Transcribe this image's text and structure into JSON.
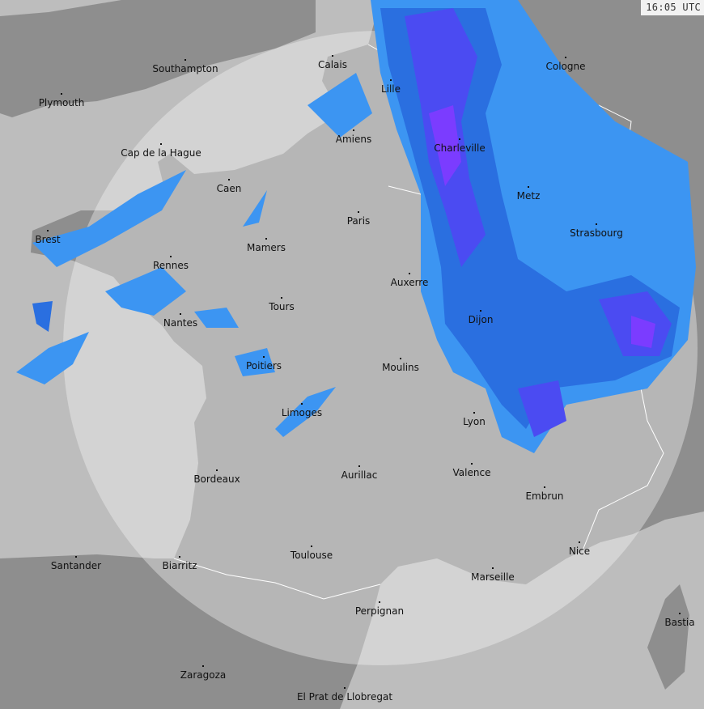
{
  "timestamp": "16:05 UTC",
  "colors": {
    "land_outside": "#8e8e8e",
    "sea_outside": "#bdbdbd",
    "land_inside": "#b6b6b6",
    "sea_inside": "#d3d3d3",
    "rain_light": "#3c95f2",
    "rain_medium": "#2a6fe0",
    "rain_heavy": "#4b4bf2",
    "rain_intense": "#7b3cff"
  },
  "cities": [
    "Southampton",
    "Calais",
    "Plymouth",
    "Lille",
    "Cologne",
    "Amiens",
    "Charleville",
    "Cap de la Hague",
    "Caen",
    "Metz",
    "Paris",
    "Brest",
    "Strasbourg",
    "Mamers",
    "Rennes",
    "Auxerre",
    "Tours",
    "Dijon",
    "Nantes",
    "Poitiers",
    "Moulins",
    "Limoges",
    "Lyon",
    "Aurillac",
    "Valence",
    "Bordeaux",
    "Embrun",
    "Nice",
    "Santander",
    "Biarritz",
    "Toulouse",
    "Marseille",
    "Perpignan",
    "Bastia",
    "Zaragoza",
    "El Prat de Llobregat"
  ]
}
